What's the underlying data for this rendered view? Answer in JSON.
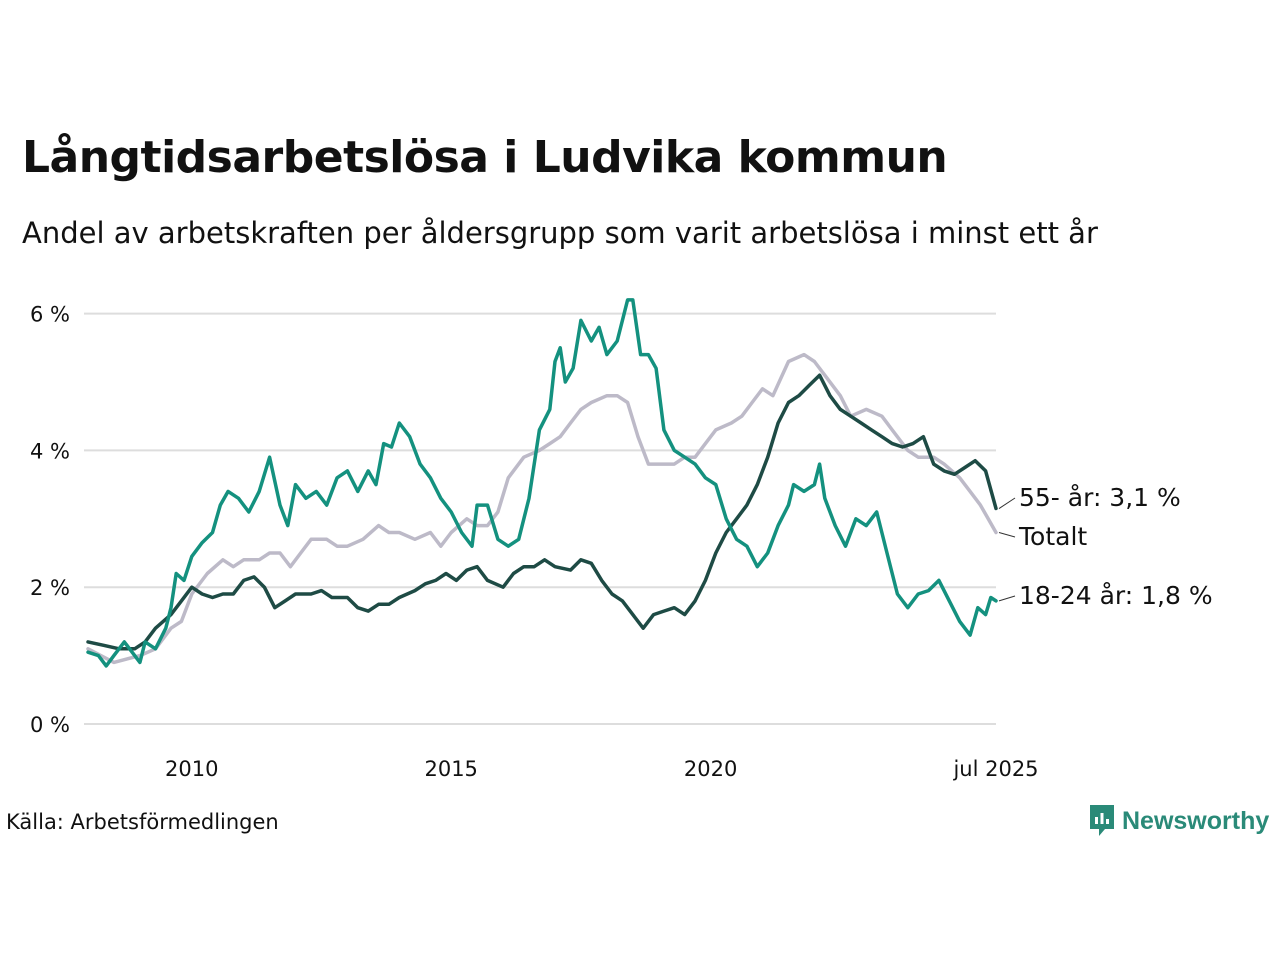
{
  "title": "Långtidsarbetslösa i Ludvika kommun",
  "subtitle": "Andel av arbetskraften per åldersgrupp som varit arbetslösa i minst ett år",
  "source": "Källa: Arbetsförmedlingen",
  "logo_text": "Newsworthy",
  "colors": {
    "total": "#bdbac8",
    "age55": "#1e4b45",
    "age18_24": "#14917f",
    "grid": "#dddddd",
    "logo": "#2a8a78"
  },
  "chart_data": {
    "type": "line",
    "ylim": [
      0,
      6.3
    ],
    "y_ticks": [
      {
        "value": 0,
        "label": "0 %"
      },
      {
        "value": 2,
        "label": "2 %"
      },
      {
        "value": 4,
        "label": "4 %"
      },
      {
        "value": 6,
        "label": "6 %"
      }
    ],
    "x_range": [
      2008.0,
      2025.5
    ],
    "x_ticks": [
      {
        "value": 2010,
        "label": "2010"
      },
      {
        "value": 2015,
        "label": "2015"
      },
      {
        "value": 2020,
        "label": "2020"
      },
      {
        "value": 2025.5,
        "label": "jul 2025"
      }
    ],
    "grid": true,
    "series": [
      {
        "name": "Totalt",
        "key": "total",
        "end_label": "Totalt",
        "points": [
          [
            2008.0,
            1.1
          ],
          [
            2008.5,
            0.9
          ],
          [
            2009.0,
            1.0
          ],
          [
            2009.3,
            1.1
          ],
          [
            2009.6,
            1.4
          ],
          [
            2009.8,
            1.5
          ],
          [
            2010.0,
            1.9
          ],
          [
            2010.3,
            2.2
          ],
          [
            2010.6,
            2.4
          ],
          [
            2010.8,
            2.3
          ],
          [
            2011.0,
            2.4
          ],
          [
            2011.3,
            2.4
          ],
          [
            2011.5,
            2.5
          ],
          [
            2011.7,
            2.5
          ],
          [
            2011.9,
            2.3
          ],
          [
            2012.1,
            2.5
          ],
          [
            2012.3,
            2.7
          ],
          [
            2012.6,
            2.7
          ],
          [
            2012.8,
            2.6
          ],
          [
            2013.0,
            2.6
          ],
          [
            2013.3,
            2.7
          ],
          [
            2013.6,
            2.9
          ],
          [
            2013.8,
            2.8
          ],
          [
            2014.0,
            2.8
          ],
          [
            2014.3,
            2.7
          ],
          [
            2014.6,
            2.8
          ],
          [
            2014.8,
            2.6
          ],
          [
            2015.0,
            2.8
          ],
          [
            2015.3,
            3.0
          ],
          [
            2015.5,
            2.9
          ],
          [
            2015.7,
            2.9
          ],
          [
            2015.9,
            3.1
          ],
          [
            2016.1,
            3.6
          ],
          [
            2016.4,
            3.9
          ],
          [
            2016.7,
            4.0
          ],
          [
            2016.9,
            4.1
          ],
          [
            2017.1,
            4.2
          ],
          [
            2017.3,
            4.4
          ],
          [
            2017.5,
            4.6
          ],
          [
            2017.7,
            4.7
          ],
          [
            2018.0,
            4.8
          ],
          [
            2018.2,
            4.8
          ],
          [
            2018.4,
            4.7
          ],
          [
            2018.6,
            4.2
          ],
          [
            2018.8,
            3.8
          ],
          [
            2019.0,
            3.8
          ],
          [
            2019.3,
            3.8
          ],
          [
            2019.5,
            3.9
          ],
          [
            2019.7,
            3.9
          ],
          [
            2019.9,
            4.1
          ],
          [
            2020.1,
            4.3
          ],
          [
            2020.4,
            4.4
          ],
          [
            2020.6,
            4.5
          ],
          [
            2020.8,
            4.7
          ],
          [
            2021.0,
            4.9
          ],
          [
            2021.2,
            4.8
          ],
          [
            2021.5,
            5.3
          ],
          [
            2021.8,
            5.4
          ],
          [
            2022.0,
            5.3
          ],
          [
            2022.2,
            5.1
          ],
          [
            2022.5,
            4.8
          ],
          [
            2022.7,
            4.5
          ],
          [
            2023.0,
            4.6
          ],
          [
            2023.3,
            4.5
          ],
          [
            2023.5,
            4.3
          ],
          [
            2023.8,
            4.0
          ],
          [
            2024.0,
            3.9
          ],
          [
            2024.3,
            3.9
          ],
          [
            2024.5,
            3.8
          ],
          [
            2024.8,
            3.6
          ],
          [
            2025.0,
            3.4
          ],
          [
            2025.2,
            3.2
          ],
          [
            2025.35,
            3.0
          ],
          [
            2025.5,
            2.8
          ]
        ]
      },
      {
        "name": "55- år",
        "key": "age55",
        "end_label": "55- år: 3,1 %",
        "points": [
          [
            2008.0,
            1.2
          ],
          [
            2008.3,
            1.15
          ],
          [
            2008.6,
            1.1
          ],
          [
            2008.9,
            1.1
          ],
          [
            2009.1,
            1.2
          ],
          [
            2009.3,
            1.4
          ],
          [
            2009.6,
            1.6
          ],
          [
            2009.8,
            1.8
          ],
          [
            2010.0,
            2.0
          ],
          [
            2010.2,
            1.9
          ],
          [
            2010.4,
            1.85
          ],
          [
            2010.6,
            1.9
          ],
          [
            2010.8,
            1.9
          ],
          [
            2011.0,
            2.1
          ],
          [
            2011.2,
            2.15
          ],
          [
            2011.4,
            2.0
          ],
          [
            2011.6,
            1.7
          ],
          [
            2011.8,
            1.8
          ],
          [
            2012.0,
            1.9
          ],
          [
            2012.3,
            1.9
          ],
          [
            2012.5,
            1.95
          ],
          [
            2012.7,
            1.85
          ],
          [
            2013.0,
            1.85
          ],
          [
            2013.2,
            1.7
          ],
          [
            2013.4,
            1.65
          ],
          [
            2013.6,
            1.75
          ],
          [
            2013.8,
            1.75
          ],
          [
            2014.0,
            1.85
          ],
          [
            2014.3,
            1.95
          ],
          [
            2014.5,
            2.05
          ],
          [
            2014.7,
            2.1
          ],
          [
            2014.9,
            2.2
          ],
          [
            2015.1,
            2.1
          ],
          [
            2015.3,
            2.25
          ],
          [
            2015.5,
            2.3
          ],
          [
            2015.7,
            2.1
          ],
          [
            2016.0,
            2.0
          ],
          [
            2016.2,
            2.2
          ],
          [
            2016.4,
            2.3
          ],
          [
            2016.6,
            2.3
          ],
          [
            2016.8,
            2.4
          ],
          [
            2017.0,
            2.3
          ],
          [
            2017.3,
            2.25
          ],
          [
            2017.5,
            2.4
          ],
          [
            2017.7,
            2.35
          ],
          [
            2017.9,
            2.1
          ],
          [
            2018.1,
            1.9
          ],
          [
            2018.3,
            1.8
          ],
          [
            2018.5,
            1.6
          ],
          [
            2018.7,
            1.4
          ],
          [
            2018.9,
            1.6
          ],
          [
            2019.1,
            1.65
          ],
          [
            2019.3,
            1.7
          ],
          [
            2019.5,
            1.6
          ],
          [
            2019.7,
            1.8
          ],
          [
            2019.9,
            2.1
          ],
          [
            2020.1,
            2.5
          ],
          [
            2020.3,
            2.8
          ],
          [
            2020.5,
            3.0
          ],
          [
            2020.7,
            3.2
          ],
          [
            2020.9,
            3.5
          ],
          [
            2021.1,
            3.9
          ],
          [
            2021.3,
            4.4
          ],
          [
            2021.5,
            4.7
          ],
          [
            2021.7,
            4.8
          ],
          [
            2021.9,
            4.95
          ],
          [
            2022.1,
            5.1
          ],
          [
            2022.3,
            4.8
          ],
          [
            2022.5,
            4.6
          ],
          [
            2022.7,
            4.5
          ],
          [
            2022.9,
            4.4
          ],
          [
            2023.1,
            4.3
          ],
          [
            2023.3,
            4.2
          ],
          [
            2023.5,
            4.1
          ],
          [
            2023.7,
            4.05
          ],
          [
            2023.9,
            4.1
          ],
          [
            2024.1,
            4.2
          ],
          [
            2024.3,
            3.8
          ],
          [
            2024.5,
            3.7
          ],
          [
            2024.7,
            3.65
          ],
          [
            2024.9,
            3.75
          ],
          [
            2025.1,
            3.85
          ],
          [
            2025.3,
            3.7
          ],
          [
            2025.5,
            3.15
          ]
        ]
      },
      {
        "name": "18-24 år",
        "key": "age18_24",
        "end_label": "18-24 år: 1,8 %",
        "points": [
          [
            2008.0,
            1.05
          ],
          [
            2008.2,
            1.0
          ],
          [
            2008.35,
            0.85
          ],
          [
            2008.5,
            1.0
          ],
          [
            2008.7,
            1.2
          ],
          [
            2008.9,
            1.0
          ],
          [
            2009.0,
            0.9
          ],
          [
            2009.1,
            1.2
          ],
          [
            2009.3,
            1.1
          ],
          [
            2009.5,
            1.4
          ],
          [
            2009.6,
            1.7
          ],
          [
            2009.7,
            2.2
          ],
          [
            2009.85,
            2.1
          ],
          [
            2010.0,
            2.45
          ],
          [
            2010.2,
            2.65
          ],
          [
            2010.4,
            2.8
          ],
          [
            2010.55,
            3.2
          ],
          [
            2010.7,
            3.4
          ],
          [
            2010.9,
            3.3
          ],
          [
            2011.1,
            3.1
          ],
          [
            2011.3,
            3.4
          ],
          [
            2011.5,
            3.9
          ],
          [
            2011.7,
            3.2
          ],
          [
            2011.85,
            2.9
          ],
          [
            2012.0,
            3.5
          ],
          [
            2012.2,
            3.3
          ],
          [
            2012.4,
            3.4
          ],
          [
            2012.6,
            3.2
          ],
          [
            2012.8,
            3.6
          ],
          [
            2013.0,
            3.7
          ],
          [
            2013.2,
            3.4
          ],
          [
            2013.4,
            3.7
          ],
          [
            2013.55,
            3.5
          ],
          [
            2013.7,
            4.1
          ],
          [
            2013.85,
            4.05
          ],
          [
            2014.0,
            4.4
          ],
          [
            2014.2,
            4.2
          ],
          [
            2014.4,
            3.8
          ],
          [
            2014.6,
            3.6
          ],
          [
            2014.8,
            3.3
          ],
          [
            2015.0,
            3.1
          ],
          [
            2015.2,
            2.8
          ],
          [
            2015.4,
            2.6
          ],
          [
            2015.5,
            3.2
          ],
          [
            2015.7,
            3.2
          ],
          [
            2015.9,
            2.7
          ],
          [
            2016.1,
            2.6
          ],
          [
            2016.3,
            2.7
          ],
          [
            2016.5,
            3.3
          ],
          [
            2016.7,
            4.3
          ],
          [
            2016.9,
            4.6
          ],
          [
            2017.0,
            5.3
          ],
          [
            2017.1,
            5.5
          ],
          [
            2017.2,
            5.0
          ],
          [
            2017.35,
            5.2
          ],
          [
            2017.5,
            5.9
          ],
          [
            2017.7,
            5.6
          ],
          [
            2017.85,
            5.8
          ],
          [
            2018.0,
            5.4
          ],
          [
            2018.2,
            5.6
          ],
          [
            2018.4,
            6.2
          ],
          [
            2018.5,
            6.2
          ],
          [
            2018.65,
            5.4
          ],
          [
            2018.8,
            5.4
          ],
          [
            2018.95,
            5.2
          ],
          [
            2019.1,
            4.3
          ],
          [
            2019.3,
            4.0
          ],
          [
            2019.5,
            3.9
          ],
          [
            2019.7,
            3.8
          ],
          [
            2019.9,
            3.6
          ],
          [
            2020.1,
            3.5
          ],
          [
            2020.3,
            3.0
          ],
          [
            2020.5,
            2.7
          ],
          [
            2020.7,
            2.6
          ],
          [
            2020.9,
            2.3
          ],
          [
            2021.1,
            2.5
          ],
          [
            2021.3,
            2.9
          ],
          [
            2021.5,
            3.2
          ],
          [
            2021.6,
            3.5
          ],
          [
            2021.8,
            3.4
          ],
          [
            2022.0,
            3.5
          ],
          [
            2022.1,
            3.8
          ],
          [
            2022.2,
            3.3
          ],
          [
            2022.4,
            2.9
          ],
          [
            2022.6,
            2.6
          ],
          [
            2022.8,
            3.0
          ],
          [
            2023.0,
            2.9
          ],
          [
            2023.2,
            3.1
          ],
          [
            2023.4,
            2.5
          ],
          [
            2023.6,
            1.9
          ],
          [
            2023.8,
            1.7
          ],
          [
            2024.0,
            1.9
          ],
          [
            2024.2,
            1.95
          ],
          [
            2024.4,
            2.1
          ],
          [
            2024.6,
            1.8
          ],
          [
            2024.8,
            1.5
          ],
          [
            2025.0,
            1.3
          ],
          [
            2025.15,
            1.7
          ],
          [
            2025.3,
            1.6
          ],
          [
            2025.4,
            1.85
          ],
          [
            2025.5,
            1.8
          ]
        ]
      }
    ]
  }
}
